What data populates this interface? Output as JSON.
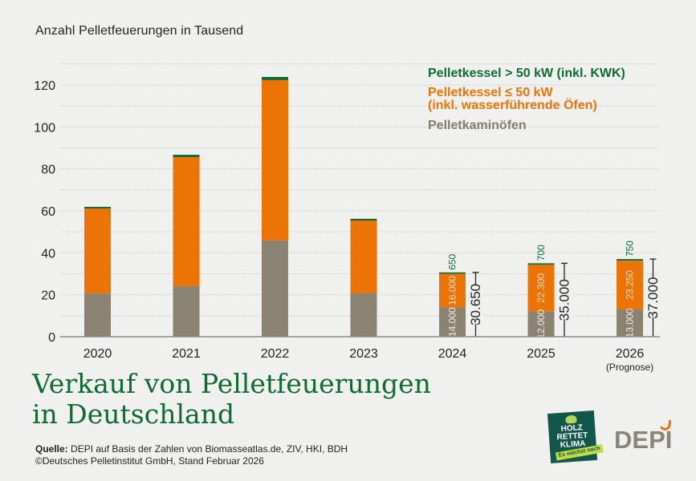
{
  "chart_data": {
    "type": "bar",
    "stacked": true,
    "subtitle": "Anzahl Pelletfeuerungen in Tausend",
    "title": "Verkauf von Pelletfeuerungen in Deutschland",
    "title_lines": [
      "Verkauf von Pelletfeuerungen",
      "in Deutschland"
    ],
    "categories": [
      "2020",
      "2021",
      "2022",
      "2023",
      "2024",
      "2025",
      "2026"
    ],
    "category_notes": {
      "2026": "(Prognose)"
    },
    "ylim": [
      0,
      130
    ],
    "yticks": [
      0,
      20,
      40,
      60,
      80,
      100,
      120
    ],
    "grid_step": 10,
    "grid": true,
    "legend_position": "top-right",
    "series": [
      {
        "name": "Pelletkaminöfen",
        "color": "#8a8372",
        "values": [
          20.6,
          24.1,
          45.9,
          20.8,
          14.0,
          12.0,
          13.0
        ]
      },
      {
        "name": "Pelletkessel ≤ 50 kW (inkl. wasserführende Öfen)",
        "color": "#ec7406",
        "values": [
          40.5,
          61.5,
          76.4,
          34.6,
          16.0,
          22.3,
          23.25
        ]
      },
      {
        "name": "Pelletkessel > 50 kW (inkl. KWK)",
        "color": "#0f6b34",
        "values": [
          0.8,
          1.1,
          1.5,
          0.8,
          0.65,
          0.7,
          0.75
        ]
      }
    ],
    "data_labels": {
      "2024": {
        "gray": "14.000",
        "orange": "16.000",
        "green": "650",
        "total": "30.650"
      },
      "2025": {
        "gray": "12.000",
        "orange": "22.300",
        "green": "700",
        "total": "35.000"
      },
      "2026": {
        "gray": "13.000",
        "orange": "23.250",
        "green": "750",
        "total": "37.000"
      }
    }
  },
  "legend": {
    "green": "Pelletkessel > 50 kW (inkl. KWK)",
    "orange_line1": "Pelletkessel ≤ 50 kW",
    "orange_line2": "(inkl. wasserführende Öfen)",
    "gray": "Pelletkaminöfen"
  },
  "footer": {
    "source_label": "Quelle:",
    "source_text": " DEPI auf Basis der Zahlen von Biomasseatlas.de, ZIV, HKI, BDH",
    "copyright": "©Deutsches Pelletinstitut GmbH, Stand Februar 2026"
  },
  "logos": {
    "hrk_lines": [
      "HOLZ",
      "RETTET",
      "KLIMA"
    ],
    "hrk_tag": "Es wächst nach",
    "depi": "DEPI"
  }
}
